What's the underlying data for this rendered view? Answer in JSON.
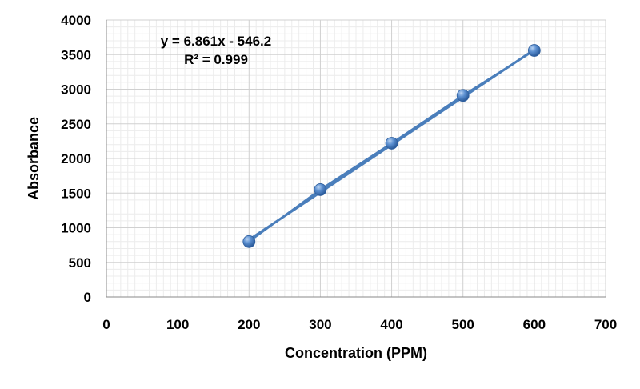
{
  "chart_data": {
    "type": "scatter",
    "title": "",
    "xlabel": "Concentration (PPM)",
    "ylabel": "Absorbance",
    "xlim": [
      0,
      700
    ],
    "ylim": [
      0,
      4000
    ],
    "x_ticks": [
      0,
      100,
      200,
      300,
      400,
      500,
      600,
      700
    ],
    "y_ticks": [
      0,
      500,
      1000,
      1500,
      2000,
      2500,
      3000,
      3500,
      4000
    ],
    "grid": true,
    "legend": "none",
    "series": [
      {
        "x": [
          200,
          300,
          400,
          500,
          600
        ],
        "values": [
          800,
          1550,
          2220,
          2910,
          3560
        ],
        "marker": "circle",
        "connected": true,
        "color": "#4a7ebb"
      }
    ],
    "trendline": {
      "type": "linear",
      "slope": 6.861,
      "intercept": -546.2,
      "color": "#4a7ebb",
      "equation": "y = 6.861x - 546.2",
      "r_squared": "R² = 0.999"
    }
  }
}
